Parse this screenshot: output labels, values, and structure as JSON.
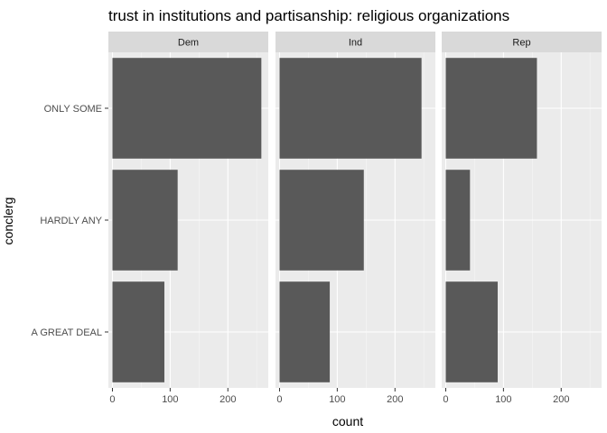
{
  "chart_data": {
    "type": "bar",
    "orientation": "horizontal",
    "title": "trust in institutions and partisanship: religious organizations",
    "xlabel": "count",
    "ylabel": "conclerg",
    "categories": [
      "ONLY SOME",
      "HARDLY ANY",
      "A GREAT DEAL"
    ],
    "x_ticks": [
      "0",
      "100",
      "200"
    ],
    "xlim": [
      -7,
      270
    ],
    "grid": true,
    "facets": [
      {
        "label": "Dem",
        "values": [
          258,
          113,
          90
        ]
      },
      {
        "label": "Ind",
        "values": [
          246,
          146,
          87
        ]
      },
      {
        "label": "Rep",
        "values": [
          158,
          42,
          90
        ]
      }
    ],
    "colors": {
      "bar": "#595959",
      "panel_bg": "#ebebeb",
      "strip_bg": "#d9d9d9",
      "grid_major": "#ffffff",
      "grid_minor": "#f5f5f5"
    }
  }
}
